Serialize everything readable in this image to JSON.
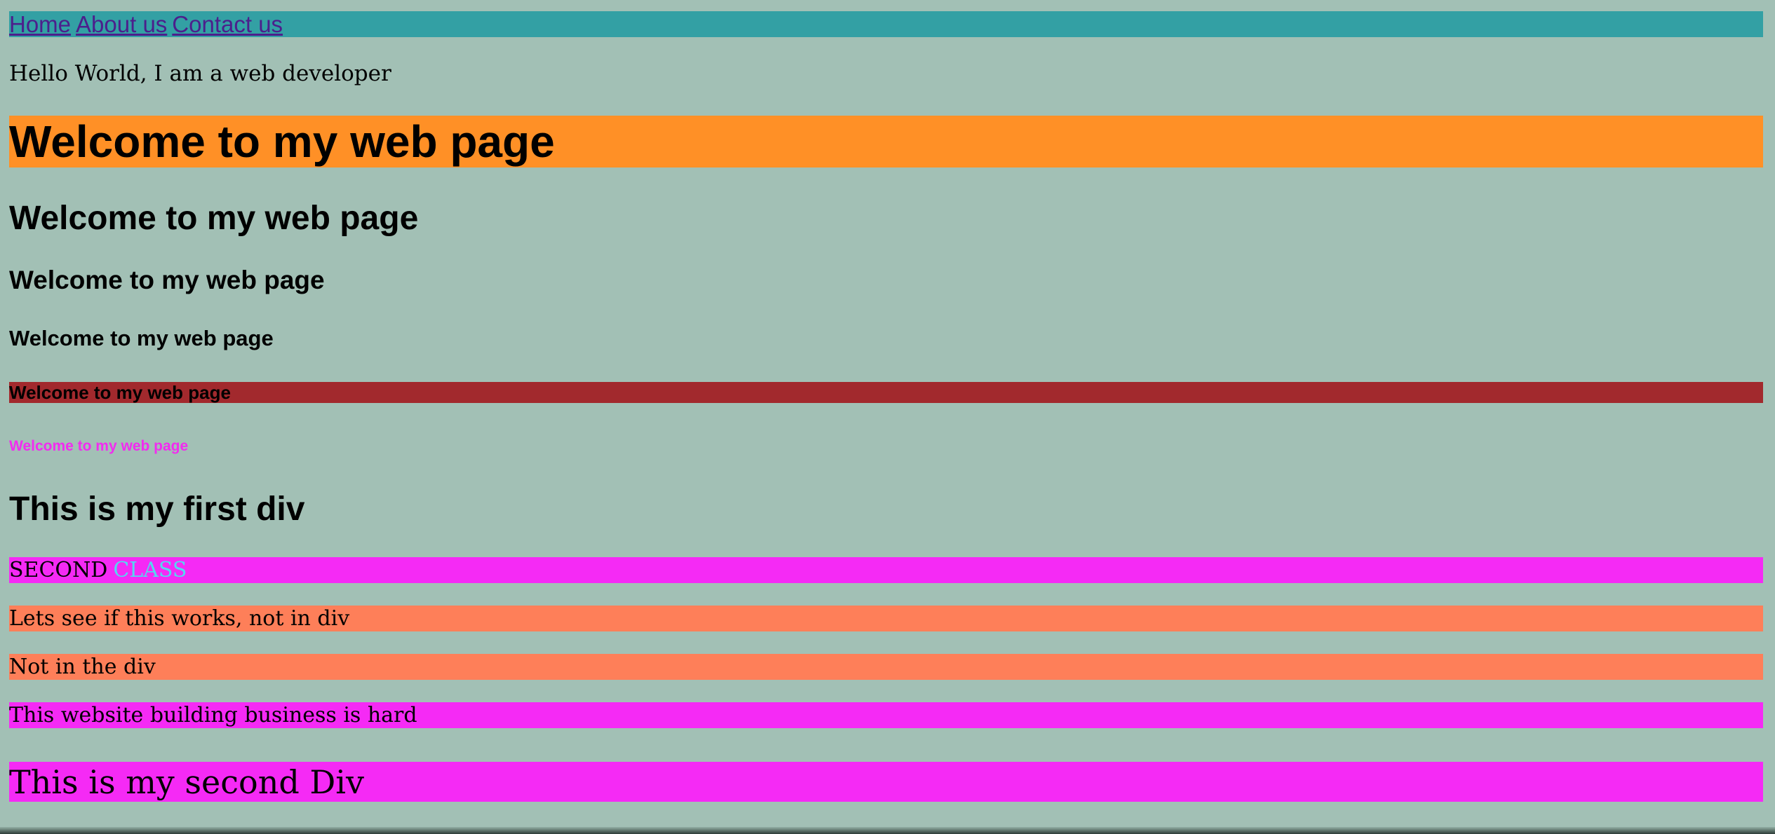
{
  "nav": {
    "links": [
      "Home",
      "About us",
      "Contact us"
    ]
  },
  "intro": "Hello World, I am a web developer",
  "headings": {
    "h1": "Welcome to my web page",
    "h2": "Welcome to my web page",
    "h3": "Welcome to my web page",
    "h4": "Welcome to my web page",
    "h5": "Welcome to my web page",
    "h6": "Welcome to my web page"
  },
  "first_div": "This is my first div",
  "second_class": {
    "word1": "SECOND",
    "word2": "CLASS"
  },
  "paragraphs": [
    "Lets see if this works, not in div",
    "Not in the div",
    "This website building business is hard"
  ],
  "second_div": "This is my second Div",
  "colors": {
    "page_background": "#a2c0b5",
    "nav_background": "#33a0a4",
    "h1_background": "#ff9026",
    "h5_background": "#a2292d",
    "h6_text": "#f22bf0",
    "magenta_background": "#f52af5",
    "coral_background": "#fe7f59",
    "class_word_text": "#54d8f0",
    "link_text": "#4c1f8c"
  }
}
